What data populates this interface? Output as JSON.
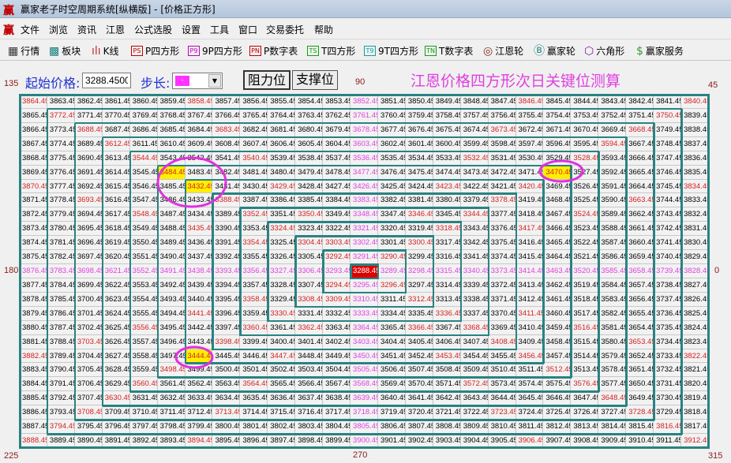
{
  "window": {
    "title": "赢家老子时空周期系统[纵横版] - [价格正方形]",
    "app_icon": "赢"
  },
  "menu": [
    "文件",
    "浏览",
    "资讯",
    "江恩",
    "公式选股",
    "设置",
    "工具",
    "窗口",
    "交易委托",
    "帮助"
  ],
  "toolbar": [
    {
      "label": "行情",
      "icon": "quote-table-icon",
      "glyph": "▦"
    },
    {
      "label": "板块",
      "icon": "sector-blocks-icon",
      "glyph": "▩"
    },
    {
      "label": "K线",
      "icon": "candlestick-icon",
      "glyph": "ılı"
    },
    {
      "label": "P四方形",
      "icon": "PS",
      "color": "#c00000"
    },
    {
      "label": "9P四方形",
      "icon": "P9",
      "color": "#c000c0"
    },
    {
      "label": "P数字表",
      "icon": "PN",
      "color": "#c00000"
    },
    {
      "label": "T四方形",
      "icon": "TS",
      "color": "#10a010"
    },
    {
      "label": "9T四方形",
      "icon": "T9",
      "color": "#10a0a0"
    },
    {
      "label": "T数字表",
      "icon": "TN",
      "color": "#10a010"
    },
    {
      "label": "江恩轮",
      "icon": "gann-wheel-icon",
      "glyph": "◎"
    },
    {
      "label": "赢家轮",
      "icon": "winner-wheel-icon",
      "glyph": "Ⓑ"
    },
    {
      "label": "六角形",
      "icon": "hexagon-icon",
      "glyph": "⬡"
    },
    {
      "label": "赢家服务",
      "icon": "dollar-icon",
      "glyph": "$"
    }
  ],
  "controls": {
    "start_price_label": "起始价格:",
    "start_price_value": "3288.4500",
    "step_label": "步长:",
    "step_value": "-",
    "step_color": "#ff33ff",
    "resistance_button": "阻力位",
    "support_button": "支撑位",
    "heading": "江恩价格四方形次日关键位测算"
  },
  "angles": {
    "top_left": "135",
    "top": "90",
    "top_right": "45",
    "left": "180",
    "right": "0",
    "bottom_left": "225",
    "bottom": "270",
    "bottom_right": "315"
  },
  "colors": {
    "normal": "#000000",
    "red": "#d42020",
    "cross": "#e040e0",
    "center_bg": "#dd0000",
    "highlight_bg": "#ffee00",
    "ring": "#e030e0",
    "wall": "#2a8282"
  },
  "grid": {
    "rows": [
      [
        3864.45,
        3863.45,
        3862.45,
        3861.45,
        3860.45,
        3859.45,
        3858.45,
        3857.45,
        3856.45,
        3855.45,
        3854.45,
        3853.45,
        3852.45,
        3851.45,
        3850.45,
        3849.45,
        3848.45,
        3847.45,
        3846.45,
        3845.45,
        3844.45,
        3843.45,
        3842.45,
        3841.45,
        3840.45
      ],
      [
        3865.45,
        3772.45,
        3771.45,
        3770.45,
        3769.45,
        3768.45,
        3767.45,
        3766.45,
        3765.45,
        3764.45,
        3763.45,
        3762.45,
        3761.45,
        3760.45,
        3759.45,
        3758.45,
        3757.45,
        3756.45,
        3755.45,
        3754.45,
        3753.45,
        3752.45,
        3751.45,
        3750.45,
        3839.45
      ],
      [
        3866.45,
        3773.45,
        3688.45,
        3687.45,
        3686.45,
        3685.45,
        3684.45,
        3683.45,
        3682.45,
        3681.45,
        3680.45,
        3679.45,
        3678.45,
        3677.45,
        3676.45,
        3675.45,
        3674.45,
        3673.45,
        3672.45,
        3671.45,
        3670.45,
        3669.45,
        3668.45,
        3749.45,
        3838.45
      ],
      [
        3867.45,
        3774.45,
        3689.45,
        3612.45,
        3611.45,
        3610.45,
        3609.45,
        3608.45,
        3607.45,
        3606.45,
        3605.45,
        3604.45,
        3603.45,
        3602.45,
        3601.45,
        3600.45,
        3599.45,
        3598.45,
        3597.45,
        3596.45,
        3595.45,
        3594.45,
        3667.45,
        3748.45,
        3837.45
      ],
      [
        3868.45,
        3775.45,
        3690.45,
        3613.45,
        3544.45,
        3543.45,
        3542.45,
        3541.45,
        3540.45,
        3539.45,
        3538.45,
        3537.45,
        3536.45,
        3535.45,
        3534.45,
        3533.45,
        3532.45,
        3531.45,
        3530.45,
        3529.45,
        3528.45,
        3593.45,
        3666.45,
        3747.45,
        3836.45
      ],
      [
        3869.45,
        3776.45,
        3691.45,
        3614.45,
        3545.45,
        3484.45,
        3483.45,
        3482.45,
        3481.45,
        3480.45,
        3479.45,
        3478.45,
        3477.45,
        3476.45,
        3475.45,
        3474.45,
        3473.45,
        3472.45,
        3471.45,
        3470.45,
        3527.45,
        3592.45,
        3665.45,
        3746.45,
        3835.45
      ],
      [
        3870.45,
        3777.45,
        3692.45,
        3615.45,
        3546.45,
        3485.45,
        3432.45,
        3431.45,
        3430.45,
        3429.45,
        3428.45,
        3427.45,
        3426.45,
        3425.45,
        3424.45,
        3423.45,
        3422.45,
        3421.45,
        3420.45,
        3469.45,
        3526.45,
        3591.45,
        3664.45,
        3745.45,
        3834.45
      ],
      [
        3871.45,
        3778.45,
        3693.45,
        3616.45,
        3547.45,
        3486.45,
        3433.45,
        3388.45,
        3387.45,
        3386.45,
        3385.45,
        3384.45,
        3383.45,
        3382.45,
        3381.45,
        3380.45,
        3379.45,
        3378.45,
        3419.45,
        3468.45,
        3525.45,
        3590.45,
        3663.45,
        3744.45,
        3833.45
      ],
      [
        3872.45,
        3779.45,
        3694.45,
        3617.45,
        3548.45,
        3487.45,
        3434.45,
        3389.45,
        3352.45,
        3351.45,
        3350.45,
        3349.45,
        3348.45,
        3347.45,
        3346.45,
        3345.45,
        3344.45,
        3377.45,
        3418.45,
        3467.45,
        3524.45,
        3589.45,
        3662.45,
        3743.45,
        3832.45
      ],
      [
        3873.45,
        3780.45,
        3695.45,
        3618.45,
        3549.45,
        3488.45,
        3435.45,
        3390.45,
        3353.45,
        3324.45,
        3323.45,
        3322.45,
        3321.45,
        3320.45,
        3319.45,
        3318.45,
        3343.45,
        3376.45,
        3417.45,
        3466.45,
        3523.45,
        3588.45,
        3661.45,
        3742.45,
        3831.45
      ],
      [
        3874.45,
        3781.45,
        3696.45,
        3619.45,
        3550.45,
        3489.45,
        3436.45,
        3391.45,
        3354.45,
        3325.45,
        3304.45,
        3303.45,
        3302.45,
        3301.45,
        3300.45,
        3317.45,
        3342.45,
        3375.45,
        3416.45,
        3465.45,
        3522.45,
        3587.45,
        3660.45,
        3741.45,
        3830.45
      ],
      [
        3875.45,
        3782.45,
        3697.45,
        3620.45,
        3551.45,
        3490.45,
        3437.45,
        3392.45,
        3355.45,
        3326.45,
        3305.45,
        3292.45,
        3291.45,
        3290.45,
        3299.45,
        3316.45,
        3341.45,
        3374.45,
        3415.45,
        3464.45,
        3521.45,
        3586.45,
        3659.45,
        3740.45,
        3829.45
      ],
      [
        3876.45,
        3783.45,
        3698.45,
        3621.45,
        3552.45,
        3491.45,
        3438.45,
        3393.45,
        3356.45,
        3327.45,
        3306.45,
        3293.45,
        3288.45,
        3289.45,
        3298.45,
        3315.45,
        3340.45,
        3373.45,
        3414.45,
        3463.45,
        3520.45,
        3585.45,
        3658.45,
        3739.45,
        3828.45
      ],
      [
        3877.45,
        3784.45,
        3699.45,
        3622.45,
        3553.45,
        3492.45,
        3439.45,
        3394.45,
        3357.45,
        3328.45,
        3307.45,
        3294.45,
        3295.45,
        3296.45,
        3297.45,
        3314.45,
        3339.45,
        3372.45,
        3413.45,
        3462.45,
        3519.45,
        3584.45,
        3657.45,
        3738.45,
        3827.45
      ],
      [
        3878.45,
        3785.45,
        3700.45,
        3623.45,
        3554.45,
        3493.45,
        3440.45,
        3395.45,
        3358.45,
        3329.45,
        3308.45,
        3309.45,
        3310.45,
        3311.45,
        3312.45,
        3313.45,
        3338.45,
        3371.45,
        3412.45,
        3461.45,
        3518.45,
        3583.45,
        3656.45,
        3737.45,
        3826.45
      ],
      [
        3879.45,
        3786.45,
        3701.45,
        3624.45,
        3555.45,
        3494.45,
        3441.45,
        3396.45,
        3359.45,
        3330.45,
        3331.45,
        3332.45,
        3333.45,
        3334.45,
        3335.45,
        3336.45,
        3337.45,
        3370.45,
        3411.45,
        3460.45,
        3517.45,
        3582.45,
        3655.45,
        3736.45,
        3825.45
      ],
      [
        3880.45,
        3787.45,
        3702.45,
        3625.45,
        3556.45,
        3495.45,
        3442.45,
        3397.45,
        3360.45,
        3361.45,
        3362.45,
        3363.45,
        3364.45,
        3365.45,
        3366.45,
        3367.45,
        3368.45,
        3369.45,
        3410.45,
        3459.45,
        3516.45,
        3581.45,
        3654.45,
        3735.45,
        3824.45
      ],
      [
        3881.45,
        3788.45,
        3703.45,
        3626.45,
        3557.45,
        3496.45,
        3443.45,
        3398.45,
        3399.45,
        3400.45,
        3401.45,
        3402.45,
        3403.45,
        3404.45,
        3405.45,
        3406.45,
        3407.45,
        3408.45,
        3409.45,
        3458.45,
        3515.45,
        3580.45,
        3653.45,
        3734.45,
        3823.45
      ],
      [
        3882.45,
        3789.45,
        3704.45,
        3627.45,
        3558.45,
        3497.45,
        3444.45,
        3445.45,
        3446.45,
        3447.45,
        3448.45,
        3449.45,
        3450.45,
        3451.45,
        3452.45,
        3453.45,
        3454.45,
        3455.45,
        3456.45,
        3457.45,
        3514.45,
        3579.45,
        3652.45,
        3733.45,
        3822.45
      ],
      [
        3883.45,
        3790.45,
        3705.45,
        3628.45,
        3559.45,
        3498.45,
        3499.45,
        3500.45,
        3501.45,
        3502.45,
        3503.45,
        3504.45,
        3505.45,
        3506.45,
        3507.45,
        3508.45,
        3509.45,
        3510.45,
        3511.45,
        3512.45,
        3513.45,
        3578.45,
        3651.45,
        3732.45,
        3821.45
      ],
      [
        3884.45,
        3791.45,
        3706.45,
        3629.45,
        3560.45,
        3561.45,
        3562.45,
        3563.45,
        3564.45,
        3565.45,
        3566.45,
        3567.45,
        3568.45,
        3569.45,
        3570.45,
        3571.45,
        3572.45,
        3573.45,
        3574.45,
        3575.45,
        3576.45,
        3577.45,
        3650.45,
        3731.45,
        3820.45
      ],
      [
        3885.45,
        3792.45,
        3707.45,
        3630.45,
        3631.45,
        3632.45,
        3633.45,
        3634.45,
        3635.45,
        3636.45,
        3637.45,
        3638.45,
        3639.45,
        3640.45,
        3641.45,
        3642.45,
        3643.45,
        3644.45,
        3645.45,
        3646.45,
        3647.45,
        3648.45,
        3649.45,
        3730.45,
        3819.45
      ],
      [
        3886.45,
        3793.45,
        3708.45,
        3709.45,
        3710.45,
        3711.45,
        3712.45,
        3713.45,
        3714.45,
        3715.45,
        3716.45,
        3717.45,
        3718.45,
        3719.45,
        3720.45,
        3721.45,
        3722.45,
        3723.45,
        3724.45,
        3725.45,
        3726.45,
        3727.45,
        3728.45,
        3729.45,
        3818.45
      ],
      [
        3887.45,
        3794.45,
        3795.45,
        3796.45,
        3797.45,
        3798.45,
        3799.45,
        3800.45,
        3801.45,
        3802.45,
        3803.45,
        3804.45,
        3805.45,
        3806.45,
        3807.45,
        3808.45,
        3809.45,
        3810.45,
        3811.45,
        3812.45,
        3813.45,
        3814.45,
        3815.45,
        3816.45,
        3817.45
      ],
      [
        3888.45,
        3889.45,
        3890.45,
        3891.45,
        3892.45,
        3893.45,
        3894.45,
        3895.45,
        3896.45,
        3897.45,
        3898.45,
        3899.45,
        3900.45,
        3901.45,
        3902.45,
        3903.45,
        3904.45,
        3905.45,
        3906.45,
        3907.45,
        3908.45,
        3909.45,
        3910.45,
        3911.45,
        3912.45
      ]
    ],
    "center_value": 3288.45,
    "highlighted_values": [
      3484.45,
      3432.45,
      3470.45,
      3444.45
    ],
    "red_values": [
      3864.45,
      3858.45,
      3846.45,
      3840.45,
      3772.45,
      3750.45,
      3688.45,
      3683.45,
      3673.45,
      3668.45,
      3612.45,
      3594.45,
      3544.45,
      3540.45,
      3532.45,
      3528.45,
      3870.45,
      3429.45,
      3423.45,
      3420.45,
      3834.45,
      3693.45,
      3388.45,
      3378.45,
      3663.45,
      3548.45,
      3352.45,
      3350.45,
      3346.45,
      3344.45,
      3524.45,
      3435.45,
      3324.45,
      3318.45,
      3417.45,
      3354.45,
      3304.45,
      3303.45,
      3300.45,
      3292.45,
      3290.45,
      3294.45,
      3296.45,
      3358.45,
      3308.45,
      3309.45,
      3312.45,
      3441.45,
      3330.45,
      3336.45,
      3411.45,
      3556.45,
      3360.45,
      3362.45,
      3366.45,
      3368.45,
      3516.45,
      3703.45,
      3398.45,
      3408.45,
      3653.45,
      3882.45,
      3447.45,
      3453.45,
      3456.45,
      3822.45,
      3498.45,
      3512.45,
      3560.45,
      3564.45,
      3572.45,
      3576.45,
      3630.45,
      3648.45,
      3708.45,
      3713.45,
      3723.45,
      3728.45,
      3794.45,
      3816.45,
      3888.45,
      3894.45,
      3906.45,
      3912.45
    ]
  }
}
